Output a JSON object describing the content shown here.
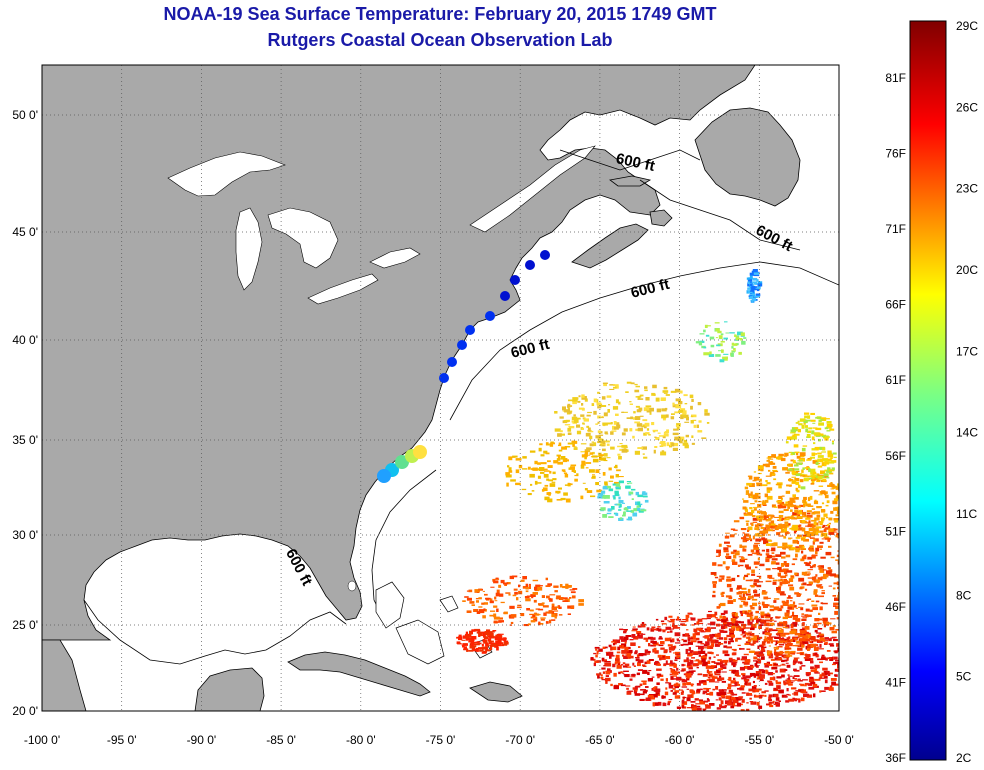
{
  "header": {
    "title": "NOAA-19 Sea Surface Temperature:  February 20, 2015 1749 GMT",
    "subtitle": "Rutgers Coastal Ocean Observation Lab"
  },
  "map": {
    "lon_range": [
      -100,
      -50
    ],
    "lat_range": [
      20,
      52.5
    ],
    "lon_ticks": [
      {
        "value": -100,
        "label": "-100 0'"
      },
      {
        "value": -95,
        "label": "-95 0'"
      },
      {
        "value": -90,
        "label": "-90 0'"
      },
      {
        "value": -85,
        "label": "-85 0'"
      },
      {
        "value": -80,
        "label": "-80 0'"
      },
      {
        "value": -75,
        "label": "-75 0'"
      },
      {
        "value": -70,
        "label": "-70 0'"
      },
      {
        "value": -65,
        "label": "-65 0'"
      },
      {
        "value": -60,
        "label": "-60 0'"
      },
      {
        "value": -55,
        "label": "-55 0'"
      },
      {
        "value": -50,
        "label": "-50 0'"
      }
    ],
    "lat_ticks": [
      {
        "value": 20,
        "label": "20 0'"
      },
      {
        "value": 25,
        "label": "25 0'"
      },
      {
        "value": 30,
        "label": "30 0'"
      },
      {
        "value": 35,
        "label": "35 0'"
      },
      {
        "value": 40,
        "label": "40 0'"
      },
      {
        "value": 45,
        "label": "45 0'"
      },
      {
        "value": 50,
        "label": "50 0'"
      }
    ],
    "grid": "dotted",
    "land_color": "#a9a9a9",
    "ocean_color": "#ffffff",
    "isobath_labels": [
      "600 ft",
      "600 ft",
      "600 ft",
      "600 ft",
      "600 ft"
    ]
  },
  "colorbar": {
    "min_c": 2,
    "max_c": 29,
    "celsius_labels": [
      "29C",
      "26C",
      "23C",
      "20C",
      "17C",
      "14C",
      "11C",
      "8C",
      "5C",
      "2C"
    ],
    "fahrenheit_labels": [
      "81F",
      "76F",
      "71F",
      "66F",
      "61F",
      "56F",
      "51F",
      "46F",
      "41F",
      "36F"
    ]
  }
}
